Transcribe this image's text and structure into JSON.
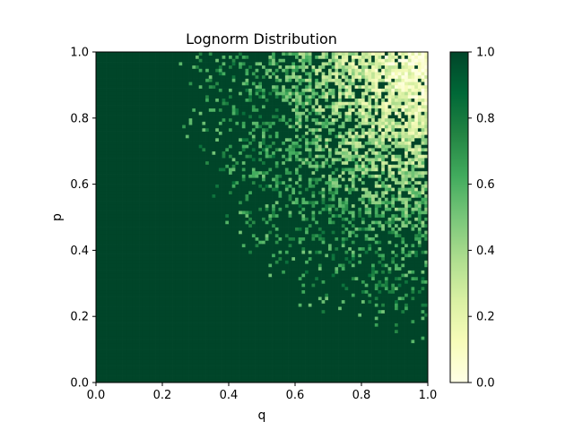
{
  "chart_data": {
    "type": "heatmap",
    "title": "Lognorm Distribution",
    "xlabel": "q",
    "ylabel": "p",
    "xlim": [
      0,
      1
    ],
    "ylim": [
      0,
      1
    ],
    "x_ticks": [
      "0.0",
      "0.2",
      "0.4",
      "0.6",
      "0.8",
      "1.0"
    ],
    "y_ticks": [
      "0.0",
      "0.2",
      "0.4",
      "0.6",
      "0.8",
      "1.0"
    ],
    "grid": false,
    "colormap": "YlGn",
    "colormap_stops": [
      "#ffffe5",
      "#f7fcb9",
      "#d9f0a3",
      "#addd8e",
      "#78c679",
      "#41ab5d",
      "#238443",
      "#006837",
      "#004529"
    ],
    "colorbar": {
      "range": [
        0,
        1
      ],
      "ticks": [
        "0.0",
        "0.2",
        "0.4",
        "0.6",
        "0.8",
        "1.0"
      ],
      "placement": "right"
    },
    "grid_resolution": [
      100,
      100
    ],
    "description_of_field": "z(p,q) ≈ 1.0 across most of the unit square; values decrease stochastically toward the top-right corner, reaching ≈0.0–0.2 near (q=1, p=1)"
  }
}
